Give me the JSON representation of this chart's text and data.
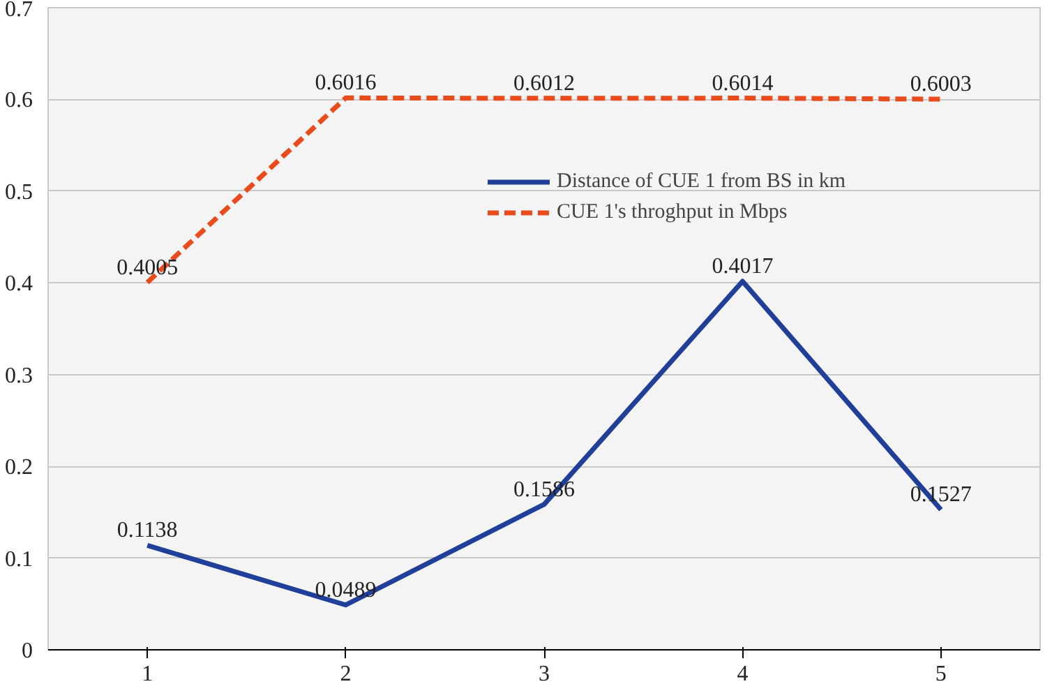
{
  "chart_data": {
    "type": "line",
    "categories": [
      "1",
      "2",
      "3",
      "4",
      "5"
    ],
    "series": [
      {
        "name": "Distance of CUE 1 from BS in km",
        "color": "#203f99",
        "values": [
          0.1138,
          0.0489,
          0.1586,
          0.4017,
          0.1527
        ],
        "line_style": "solid"
      },
      {
        "name": "CUE 1's throghput in Mbps",
        "color": "#e84c1c",
        "values": [
          0.4005,
          0.6016,
          0.6012,
          0.6014,
          0.6003
        ],
        "line_style": "dashed"
      }
    ],
    "ylim": [
      0,
      0.7
    ],
    "yticks": [
      0,
      0.1,
      0.2,
      0.3,
      0.4,
      0.5,
      0.6,
      0.7
    ],
    "grid": "y",
    "legend": "top right",
    "data_labels": true,
    "marker": "none"
  }
}
